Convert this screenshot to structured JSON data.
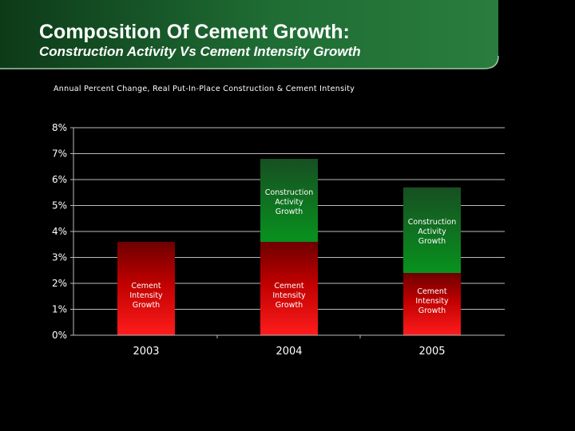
{
  "chart_data": {
    "type": "bar",
    "stacked": true,
    "title": "Composition Of Cement Growth:",
    "subtitle": "Construction Activity Vs Cement Intensity Growth",
    "note": "Annual Percent Change, Real Put-In-Place Construction & Cement Intensity",
    "categories": [
      "2003",
      "2004",
      "2005"
    ],
    "y_ticks": [
      "0%",
      "1%",
      "2%",
      "3%",
      "4%",
      "5%",
      "6%",
      "7%",
      "8%"
    ],
    "ylim": [
      0,
      8
    ],
    "grid": true,
    "series": [
      {
        "name": "Cement Intensity Growth",
        "values": [
          3.6,
          3.6,
          2.4
        ],
        "labels": [
          [
            "Cement",
            "Intensity",
            "Growth"
          ],
          [
            "Cement",
            "Intensity",
            "Growth"
          ],
          [
            "Cement",
            "Intensity",
            "Growth"
          ]
        ]
      },
      {
        "name": "Construction Activity Growth",
        "values": [
          0,
          3.2,
          3.3
        ],
        "labels": [
          [],
          [
            "Construction",
            "Activity",
            "Growth"
          ],
          [
            "Construction",
            "Activity",
            "Growth"
          ]
        ]
      }
    ]
  },
  "colors": {
    "background": "#000000",
    "header_green": "#1e6a32",
    "cement_top": "#7a0000",
    "cement_bottom": "#ff1a1a",
    "construction_top": "#1c5a28",
    "construction_bottom": "#0a8f1f",
    "axis": "#bbbbbb",
    "grid": "#bbbbbb",
    "text": "#ffffff"
  }
}
